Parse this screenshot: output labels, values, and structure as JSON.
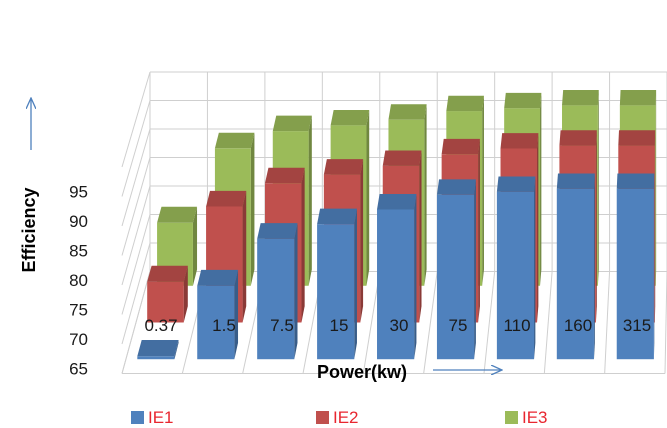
{
  "chart_data": {
    "type": "bar",
    "style": "3d-clustered-column",
    "categories": [
      "0.37",
      "1.5",
      "7.5",
      "15",
      "30",
      "75",
      "110",
      "160",
      "315"
    ],
    "series": [
      {
        "name": "IE1",
        "color": "#4f81bd",
        "values": [
          65.5,
          77.5,
          85.5,
          88.0,
          90.5,
          93.0,
          93.5,
          94.0,
          94.0
        ]
      },
      {
        "name": "IE2",
        "color": "#c0504d",
        "values": [
          72.0,
          85.0,
          89.0,
          90.5,
          92.0,
          94.0,
          95.0,
          95.5,
          95.5
        ]
      },
      {
        "name": "IE3",
        "color": "#9bbb59",
        "values": [
          76.0,
          89.0,
          92.0,
          93.0,
          94.0,
          95.5,
          96.0,
          96.5,
          96.5
        ]
      }
    ],
    "xlabel": "Power(kw)",
    "ylabel": "Efficiency",
    "yticks": [
      65,
      70,
      75,
      80,
      85,
      90,
      95
    ],
    "ylim": [
      65,
      100
    ],
    "grid": true,
    "legend_position": "bottom"
  }
}
